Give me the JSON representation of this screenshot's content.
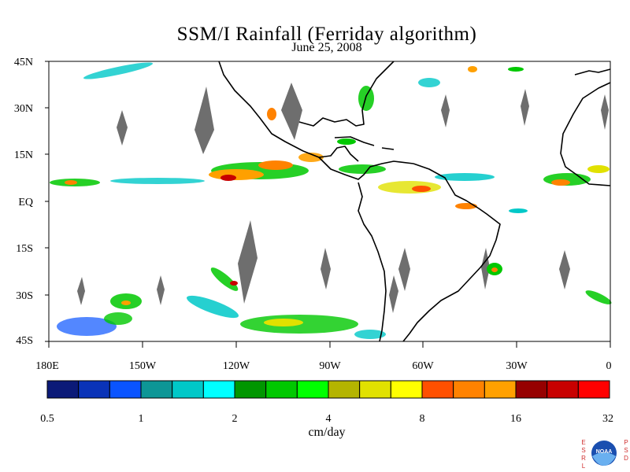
{
  "title": "SSM/I Rainfall (Ferriday algorithm)",
  "subtitle": "June 25, 2008",
  "lat_labels": [
    "45N",
    "30N",
    "15N",
    "EQ",
    "15S",
    "30S",
    "45S"
  ],
  "lon_labels": [
    "180E",
    "150W",
    "120W",
    "90W",
    "60W",
    "30W",
    "0"
  ],
  "colorbar": {
    "colors": [
      "#0b1a78",
      "#0a33b8",
      "#0a54ff",
      "#0d9696",
      "#00c8c8",
      "#00ffff",
      "#009600",
      "#00c800",
      "#00ff00",
      "#b4b400",
      "#e1e100",
      "#ffff00",
      "#ff5000",
      "#ff8200",
      "#ffa000",
      "#960000",
      "#c80000",
      "#ff0000"
    ],
    "tick_labels": [
      "0.5",
      "1",
      "2",
      "4",
      "8",
      "16",
      "32"
    ],
    "units": "cm/day"
  },
  "logo": {
    "left_letters": "ESRL",
    "right_letters": "PSD",
    "emblem_text": "NOAA"
  },
  "colors": {
    "land_outline": "#000000",
    "missing_data": "#6e6e6e"
  }
}
